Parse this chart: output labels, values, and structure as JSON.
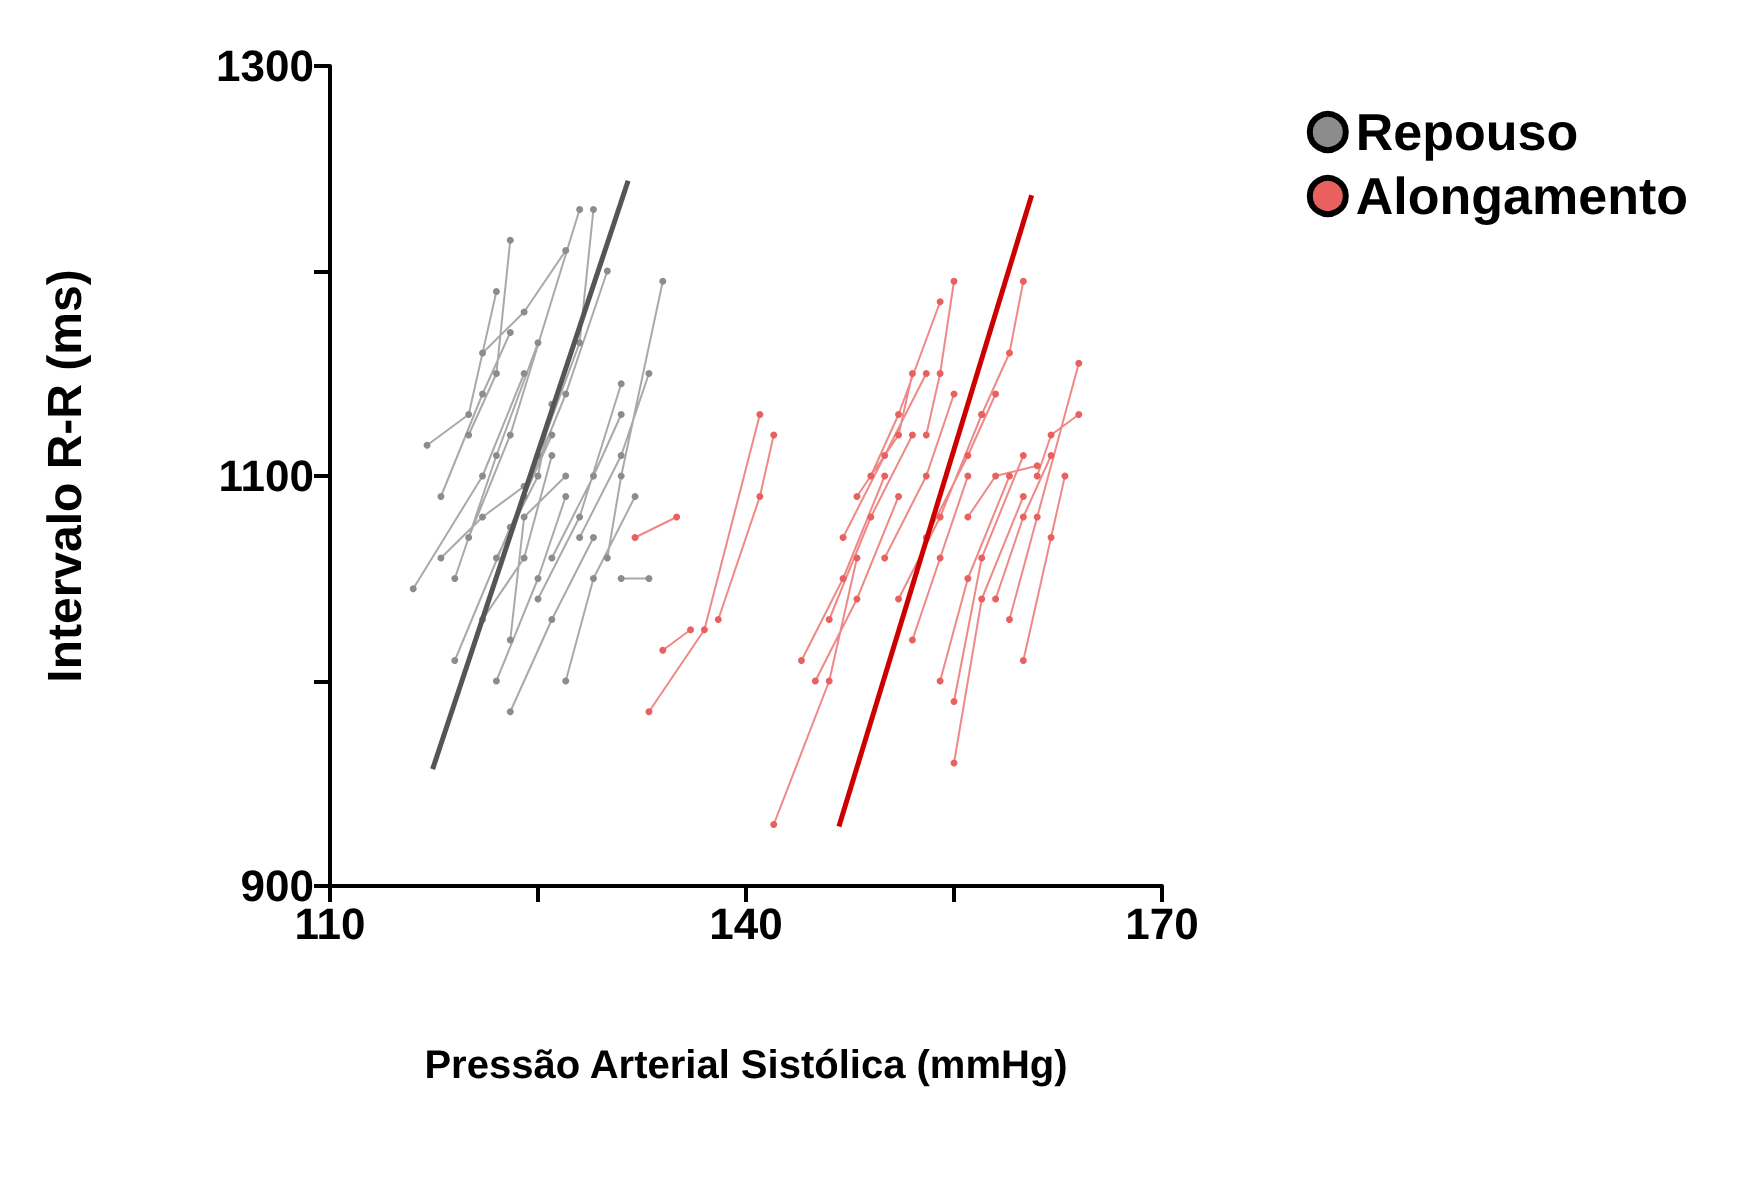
{
  "chart_data": {
    "type": "line",
    "xlabel": "Pressão Arterial Sistólica (mmHg)",
    "ylabel": "Intervalo R-R (ms)",
    "xlim": [
      110,
      170
    ],
    "ylim": [
      900,
      1300
    ],
    "xticks": [
      110,
      {
        "value": 125,
        "label": null
      },
      140,
      {
        "value": 155,
        "label": null
      },
      170
    ],
    "yticks": [
      900,
      {
        "value": 1000,
        "label": null
      },
      1100,
      {
        "value": 1200,
        "label": null
      },
      1300
    ],
    "grid": false,
    "legend": "top right",
    "marker": "circle",
    "line_style": "solid",
    "series": [
      {
        "name": "Repouso",
        "color": "#8c8c8c",
        "x": [
          116,
          121,
          124,
          null,
          117,
          120,
          122,
          null,
          118,
          121,
          123,
          null,
          119,
          122,
          125,
          null,
          119,
          123,
          126,
          null,
          120,
          123,
          128,
          null,
          121,
          124,
          126,
          null,
          122,
          125,
          127,
          null,
          120,
          122,
          123,
          null,
          124,
          127,
          130,
          null,
          125,
          128,
          131,
          null,
          126,
          129,
          131,
          null,
          123,
          126,
          129,
          null,
          127,
          129,
          132,
          null,
          128,
          131,
          133,
          null,
          121,
          124,
          127,
          null,
          125,
          128,
          129,
          null,
          118,
          121,
          124,
          null,
          131,
          133,
          null,
          130,
          131,
          134,
          null,
          122,
          125,
          126,
          null,
          123,
          124,
          127
        ],
        "values": [
          1045,
          1100,
          1150,
          null,
          1115,
          1130,
          1190,
          null,
          1090,
          1140,
          1170,
          null,
          1050,
          1110,
          1165,
          null,
          1010,
          1075,
          1120,
          null,
          1070,
          1120,
          1230,
          null,
          1030,
          1060,
          1110,
          null,
          1000,
          1050,
          1090,
          null,
          1120,
          1150,
          1215,
          null,
          1090,
          1140,
          1200,
          null,
          1040,
          1080,
          1145,
          null,
          1060,
          1100,
          1130,
          null,
          985,
          1030,
          1070,
          null,
          1000,
          1050,
          1090,
          null,
          1070,
          1110,
          1150,
          null,
          1160,
          1180,
          1210,
          null,
          1110,
          1165,
          1230,
          null,
          1060,
          1080,
          1095,
          null,
          1050,
          1050,
          null,
          1060,
          1100,
          1195,
          null,
          1060,
          1100,
          1135,
          null,
          1020,
          1080,
          1100
        ]
      },
      {
        "name": "Alongamento",
        "color": "#e8615f",
        "x": [
          133,
          137,
          141,
          null,
          134,
          136,
          null,
          132,
          135,
          null,
          138,
          141,
          142,
          null,
          142,
          146,
          148,
          null,
          144,
          147,
          150,
          null,
          145,
          148,
          151,
          null,
          146,
          149,
          152,
          null,
          147,
          150,
          153,
          null,
          149,
          151,
          154,
          null,
          150,
          153,
          155,
          null,
          151,
          154,
          157,
          null,
          152,
          154,
          156,
          null,
          153,
          156,
          158,
          null,
          154,
          156,
          159,
          null,
          155,
          157,
          160,
          null,
          155,
          157,
          160,
          null,
          156,
          158,
          161,
          null,
          158,
          160,
          162,
          null,
          159,
          161,
          164,
          null,
          160,
          162,
          163,
          null,
          157,
          159,
          160,
          null,
          153,
          154,
          155,
          null,
          148,
          151,
          152,
          null,
          161,
          162,
          164
        ],
        "values": [
          985,
          1025,
          1130,
          null,
          1015,
          1025,
          null,
          1070,
          1080,
          null,
          1030,
          1090,
          1120,
          null,
          930,
          1000,
          1060,
          null,
          1010,
          1050,
          1100,
          null,
          1000,
          1040,
          1090,
          null,
          1030,
          1080,
          1120,
          null,
          1070,
          1110,
          1150,
          null,
          1100,
          1130,
          1185,
          null,
          1060,
          1100,
          1140,
          null,
          1040,
          1080,
          1130,
          null,
          1020,
          1060,
          1100,
          null,
          1070,
          1110,
          1140,
          null,
          1000,
          1050,
          1100,
          null,
          960,
          1040,
          1090,
          null,
          990,
          1060,
          1110,
          null,
          1080,
          1100,
          1105,
          null,
          1040,
          1080,
          1110,
          null,
          1030,
          1080,
          1155,
          null,
          1010,
          1070,
          1100,
          null,
          1130,
          1160,
          1195,
          null,
          1120,
          1150,
          1195,
          null,
          1090,
          1120,
          1150,
          null,
          1100,
          1120,
          1130
        ]
      },
      {
        "color": "#555555",
        "marker": "none",
        "x": [
          117.4,
          131.5
        ],
        "values": [
          957,
          1244
        ]
      },
      {
        "color": "#cc0000",
        "marker": "none",
        "x": [
          146.7,
          160.6
        ],
        "values": [
          929,
          1237
        ]
      }
    ]
  }
}
